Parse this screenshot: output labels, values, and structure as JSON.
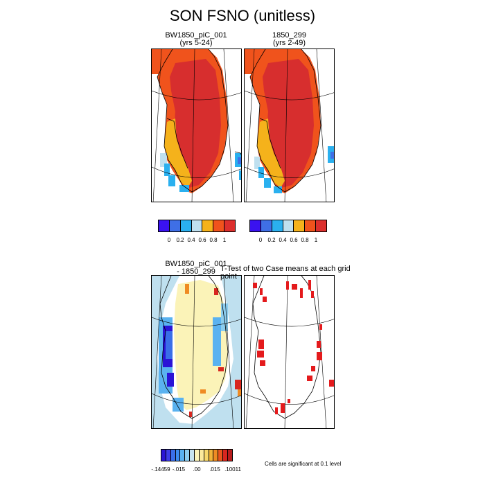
{
  "figure": {
    "title": "SON FSNO (unitless)"
  },
  "panels": {
    "top_left": {
      "line1": "BW1850_piC_001",
      "line2": "(yrs 5-24)"
    },
    "top_right": {
      "line1": "1850_299",
      "line2": "(yrs 2-49)"
    },
    "bottom_left": {
      "line1": "BW1850_piC_001",
      "line2": "- 1850_299"
    },
    "bottom_right": {
      "title": "T-Test of two Case means at each grid point"
    }
  },
  "colorbar_top": {
    "colors": [
      "#3a12f0",
      "#3f6fe6",
      "#2ab0ef",
      "#bfe0ef",
      "#f5b21b",
      "#f0531c",
      "#dc2f2d"
    ],
    "ticks": [
      "0",
      "0.2",
      "0.4",
      "0.6",
      "0.8",
      "1"
    ]
  },
  "colorbar_bottom": {
    "colors": [
      "#2a14d6",
      "#3c3cea",
      "#3a6ee8",
      "#3d8bef",
      "#5ab2f0",
      "#8ccdee",
      "#c7e4f0",
      "#fbf3b8",
      "#fbea9d",
      "#f7d86b",
      "#f2b43a",
      "#ef8b23",
      "#e9561e",
      "#d8261f",
      "#b81d1d"
    ],
    "ticks": [
      "-.14459",
      "-.015",
      ".00",
      ".015",
      ".10011"
    ]
  },
  "significance_note": "Cells are significant at 0.1 level",
  "colors": {
    "interior_high": "#d72e2e",
    "margin_mid": "#f0531c",
    "margin_low": "#f5b21b",
    "diff_background": "#fbf3b8",
    "significant": "#e41a1c"
  }
}
